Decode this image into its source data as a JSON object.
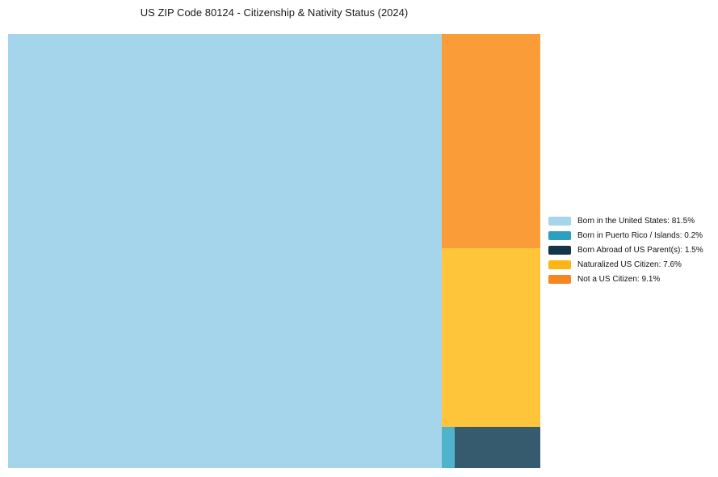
{
  "page": {
    "background": "#ffffff"
  },
  "chart_data": {
    "type": "treemap",
    "title": "US ZIP Code 80124 - Citizenship & Nativity Status (2024)",
    "unit": "%",
    "legend_position": "right",
    "legend_label_format": "{name}: {value}%",
    "series": [
      {
        "name": "Born in the United States",
        "value": 81.5,
        "legend_color": "#a6d4ea",
        "block_color": "#a5d5eb"
      },
      {
        "name": "Born in Puerto Rico / Islands",
        "value": 0.2,
        "legend_color": "#2da0be",
        "block_color": "#4fb3cc"
      },
      {
        "name": "Born Abroad of US Parent(s)",
        "value": 1.5,
        "legend_color": "#12354c",
        "block_color": "#365a6e"
      },
      {
        "name": "Naturalized US Citizen",
        "value": 7.6,
        "legend_color": "#fcb514",
        "block_color": "#fec53a"
      },
      {
        "name": "Not a US Citizen",
        "value": 9.1,
        "legend_color": "#f6861f",
        "block_color": "#fa9d38"
      }
    ]
  }
}
